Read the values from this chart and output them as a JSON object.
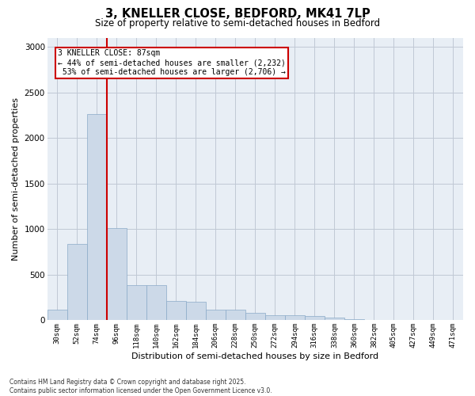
{
  "title1": "3, KNELLER CLOSE, BEDFORD, MK41 7LP",
  "title2": "Size of property relative to semi-detached houses in Bedford",
  "xlabel": "Distribution of semi-detached houses by size in Bedford",
  "ylabel": "Number of semi-detached properties",
  "bins": [
    "30sqm",
    "52sqm",
    "74sqm",
    "96sqm",
    "118sqm",
    "140sqm",
    "162sqm",
    "184sqm",
    "206sqm",
    "228sqm",
    "250sqm",
    "272sqm",
    "294sqm",
    "316sqm",
    "338sqm",
    "360sqm",
    "382sqm",
    "405sqm",
    "427sqm",
    "449sqm",
    "471sqm"
  ],
  "values": [
    120,
    840,
    2260,
    1010,
    390,
    385,
    210,
    205,
    120,
    120,
    80,
    60,
    55,
    45,
    30,
    10,
    5,
    5,
    3,
    2,
    2
  ],
  "bar_color": "#ccd9e8",
  "bar_edge_color": "#8aaac8",
  "property_bin_index": 2,
  "property_label": "3 KNELLER CLOSE: 87sqm",
  "pct_smaller": 44,
  "pct_larger": 53,
  "n_smaller": 2232,
  "n_larger": 2706,
  "vline_color": "#cc0000",
  "annotation_box_color": "#cc0000",
  "ylim": [
    0,
    3100
  ],
  "yticks": [
    0,
    500,
    1000,
    1500,
    2000,
    2500,
    3000
  ],
  "background_color": "#ffffff",
  "plot_bg_color": "#e8eef5",
  "grid_color": "#c0c8d4",
  "footnote": "Contains HM Land Registry data © Crown copyright and database right 2025.\nContains public sector information licensed under the Open Government Licence v3.0."
}
